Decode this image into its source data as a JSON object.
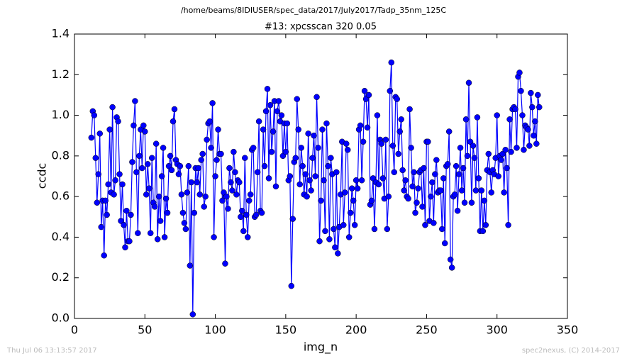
{
  "chart_data": {
    "type": "line",
    "suptitle": "/home/beams/8IDIUSER/spec_data/2017/July2017/Tadp_35nm_125C",
    "title": "#13: xpcsscan 320 0.05",
    "x_label": "img_n",
    "y_label": "ccdc",
    "footer_left": "Thu Jul 06 13:13:57 2017",
    "footer_right": "spec2nexus, (C) 2014-2017",
    "xlim": [
      0,
      350
    ],
    "xticks": [
      0,
      50,
      100,
      150,
      200,
      250,
      300,
      350
    ],
    "ylim": [
      0,
      1.4
    ],
    "yticks": [
      {
        "value": 0,
        "label": "0.0"
      },
      0.2,
      0.4,
      0.6,
      0.8,
      {
        "value": 1,
        "label": "1.0"
      },
      1.2,
      1.4
    ],
    "grid": false,
    "x": [
      12,
      13,
      14,
      15,
      16,
      17,
      18,
      19,
      20,
      21,
      22,
      23,
      24,
      25,
      26,
      27,
      28,
      29,
      30,
      31,
      32,
      33,
      34,
      35,
      36,
      37,
      38,
      39,
      40,
      41,
      42,
      43,
      44,
      45,
      46,
      47,
      48,
      49,
      50,
      51,
      52,
      53,
      54,
      55,
      56,
      57,
      58,
      59,
      60,
      61,
      62,
      63,
      64,
      65,
      66,
      67,
      68,
      69,
      70,
      71,
      72,
      73,
      74,
      75,
      76,
      77,
      78,
      79,
      80,
      81,
      82,
      83,
      84,
      85,
      86,
      87,
      88,
      89,
      90,
      91,
      92,
      93,
      94,
      95,
      96,
      97,
      98,
      99,
      100,
      101,
      102,
      103,
      104,
      105,
      106,
      107,
      108,
      109,
      110,
      111,
      112,
      113,
      114,
      115,
      116,
      117,
      118,
      119,
      120,
      121,
      122,
      123,
      124,
      125,
      126,
      127,
      128,
      129,
      130,
      131,
      132,
      133,
      134,
      135,
      136,
      137,
      138,
      139,
      140,
      141,
      142,
      143,
      144,
      145,
      146,
      147,
      148,
      149,
      150,
      151,
      152,
      153,
      154,
      155,
      156,
      157,
      158,
      159,
      160,
      161,
      162,
      163,
      164,
      165,
      166,
      167,
      168,
      169,
      170,
      171,
      172,
      173,
      174,
      175,
      176,
      177,
      178,
      179,
      180,
      181,
      182,
      183,
      184,
      185,
      186,
      187,
      188,
      189,
      190,
      191,
      192,
      193,
      194,
      195,
      196,
      197,
      198,
      199,
      200,
      201,
      202,
      203,
      204,
      205,
      206,
      207,
      208,
      209,
      210,
      211,
      212,
      213,
      214,
      215,
      216,
      217,
      218,
      219,
      220,
      221,
      222,
      223,
      224,
      225,
      226,
      227,
      228,
      229,
      230,
      231,
      232,
      233,
      234,
      235,
      236,
      237,
      238,
      239,
      240,
      241,
      242,
      243,
      244,
      245,
      246,
      247,
      248,
      249,
      250,
      251,
      252,
      253,
      254,
      255,
      256,
      257,
      258,
      259,
      260,
      261,
      262,
      263,
      264,
      265,
      266,
      267,
      268,
      269,
      270,
      271,
      272,
      273,
      274,
      275,
      276,
      277,
      278,
      279,
      280,
      281,
      282,
      283,
      284,
      285,
      286,
      287,
      288,
      289,
      290,
      291,
      292,
      293,
      294,
      295,
      296,
      297,
      298,
      299,
      300,
      301,
      302,
      303,
      304,
      305,
      306,
      307,
      308,
      309,
      310,
      311,
      312,
      313,
      314,
      315,
      316,
      317,
      318,
      319,
      320,
      321,
      322,
      323,
      324,
      325,
      326,
      327,
      328,
      329,
      330
    ],
    "series": [
      {
        "name": "ccdc",
        "color": "#0000ff",
        "values": [
          0.89,
          1.02,
          1.0,
          0.79,
          0.57,
          0.71,
          0.91,
          0.45,
          0.58,
          0.31,
          0.58,
          0.51,
          0.66,
          0.93,
          0.62,
          1.04,
          0.61,
          0.68,
          0.99,
          0.97,
          0.71,
          0.48,
          0.66,
          0.46,
          0.35,
          0.53,
          0.38,
          0.38,
          0.51,
          0.77,
          0.95,
          1.07,
          0.72,
          0.42,
          0.8,
          0.93,
          0.74,
          0.95,
          0.92,
          0.61,
          0.76,
          0.64,
          0.42,
          0.79,
          0.57,
          0.55,
          0.86,
          0.39,
          0.6,
          0.48,
          0.7,
          0.84,
          0.4,
          0.59,
          0.52,
          0.75,
          0.8,
          0.73,
          0.97,
          1.03,
          0.78,
          0.76,
          0.71,
          0.75,
          0.61,
          0.52,
          0.47,
          0.44,
          0.62,
          0.75,
          0.26,
          0.67,
          0.02,
          0.52,
          0.74,
          0.67,
          0.74,
          0.61,
          0.78,
          0.81,
          0.55,
          0.6,
          0.88,
          0.96,
          0.97,
          0.84,
          1.06,
          0.4,
          0.7,
          0.78,
          0.93,
          0.81,
          0.81,
          0.58,
          0.62,
          0.27,
          0.6,
          0.54,
          0.74,
          0.67,
          0.63,
          0.82,
          0.72,
          0.61,
          0.68,
          0.67,
          0.5,
          0.53,
          0.43,
          0.79,
          0.51,
          0.4,
          0.58,
          0.61,
          0.83,
          0.84,
          0.5,
          0.51,
          0.72,
          0.97,
          0.53,
          0.52,
          0.93,
          0.75,
          1.02,
          1.13,
          0.69,
          1.05,
          0.82,
          0.92,
          1.07,
          0.65,
          1.02,
          1.07,
          0.97,
          1.0,
          0.8,
          0.96,
          0.82,
          0.96,
          0.68,
          0.7,
          0.16,
          0.49,
          0.77,
          0.79,
          1.08,
          0.93,
          0.66,
          0.84,
          0.75,
          0.61,
          0.71,
          0.6,
          0.91,
          0.68,
          0.63,
          0.79,
          0.9,
          0.7,
          1.09,
          0.84,
          0.38,
          0.58,
          0.93,
          0.68,
          0.43,
          0.96,
          0.75,
          0.39,
          0.79,
          0.71,
          0.44,
          0.35,
          0.72,
          0.32,
          0.45,
          0.61,
          0.87,
          0.46,
          0.62,
          0.86,
          0.83,
          0.4,
          0.52,
          0.64,
          0.58,
          0.46,
          0.68,
          0.64,
          0.93,
          0.95,
          0.68,
          0.87,
          1.12,
          1.08,
          0.94,
          1.1,
          0.56,
          0.58,
          0.69,
          0.44,
          0.67,
          1.0,
          0.66,
          0.88,
          0.86,
          0.69,
          0.59,
          0.88,
          0.44,
          0.6,
          1.12,
          1.26,
          0.85,
          0.72,
          1.09,
          1.08,
          0.81,
          0.92,
          0.98,
          0.73,
          0.63,
          0.68,
          0.6,
          0.59,
          1.03,
          0.84,
          0.65,
          0.72,
          0.52,
          0.57,
          0.64,
          0.72,
          0.73,
          0.55,
          0.74,
          0.46,
          0.87,
          0.87,
          0.48,
          0.6,
          0.67,
          0.47,
          0.71,
          0.78,
          0.62,
          0.63,
          0.63,
          0.44,
          0.69,
          0.37,
          0.75,
          0.76,
          0.92,
          0.29,
          0.25,
          0.6,
          0.61,
          0.75,
          0.53,
          0.71,
          0.84,
          0.63,
          0.74,
          0.57,
          0.98,
          0.8,
          1.16,
          0.87,
          0.57,
          0.85,
          0.79,
          0.63,
          0.99,
          0.69,
          0.43,
          0.63,
          0.43,
          0.58,
          0.46,
          0.73,
          0.81,
          0.72,
          0.62,
          0.73,
          0.71,
          0.79,
          1.0,
          0.7,
          0.8,
          0.78,
          0.81,
          0.62,
          0.83,
          0.74,
          0.46,
          0.98,
          0.82,
          1.03,
          1.04,
          1.03,
          0.84,
          1.19,
          1.21,
          1.12,
          1.0,
          0.83,
          0.95,
          0.94,
          0.93,
          0.85,
          1.11,
          1.04,
          0.9,
          0.97,
          0.86,
          1.1,
          1.04
        ]
      }
    ]
  }
}
